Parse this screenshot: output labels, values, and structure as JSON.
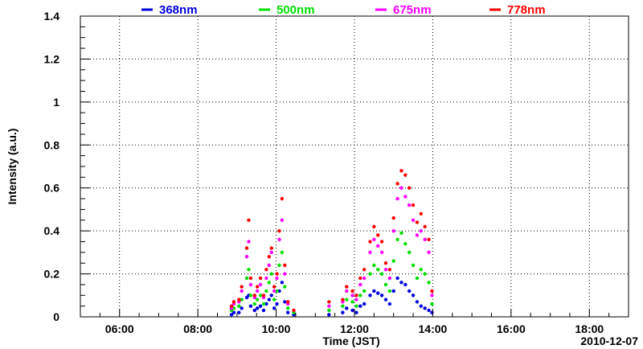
{
  "chart_data": {
    "type": "scatter",
    "title": "",
    "xlabel": "Time (JST)",
    "ylabel": "Intensity (a.u.)",
    "date_label": "2010-12-07",
    "x_unit": "hour of day (JST)",
    "xlim": [
      5.0,
      19.0
    ],
    "ylim": [
      0,
      1.4
    ],
    "x_ticks": [
      6,
      8,
      10,
      12,
      14,
      16,
      18
    ],
    "x_tick_labels": [
      "06:00",
      "08:00",
      "10:00",
      "12:00",
      "14:00",
      "16:00",
      "18:00"
    ],
    "y_ticks": [
      0,
      0.2,
      0.4,
      0.6,
      0.8,
      1,
      1.2,
      1.4
    ],
    "y_tick_labels": [
      "0",
      "0.2",
      "0.4",
      "0.6",
      "0.8",
      "1",
      "1.2",
      "1.4"
    ],
    "grid": true,
    "legend_position": "top",
    "series": [
      {
        "name": "368nm",
        "color": "#0000dd",
        "x": [
          8.86,
          8.92,
          9.05,
          9.12,
          9.25,
          9.3,
          9.35,
          9.45,
          9.52,
          9.6,
          9.68,
          9.75,
          9.82,
          9.88,
          9.95,
          10.02,
          10.08,
          10.15,
          10.22,
          10.3,
          10.45,
          11.35,
          11.7,
          11.8,
          11.95,
          12.05,
          12.15,
          12.25,
          12.4,
          12.5,
          12.6,
          12.7,
          12.8,
          12.9,
          13.0,
          13.1,
          13.2,
          13.3,
          13.4,
          13.5,
          13.6,
          13.7,
          13.8,
          13.9,
          13.98
        ],
        "y": [
          0.01,
          0.02,
          0.02,
          0.04,
          0.09,
          0.1,
          0.05,
          0.03,
          0.04,
          0.05,
          0.03,
          0.06,
          0.08,
          0.1,
          0.04,
          0.06,
          0.12,
          0.16,
          0.07,
          0.02,
          0.01,
          0.01,
          0.02,
          0.04,
          0.03,
          0.02,
          0.05,
          0.06,
          0.1,
          0.12,
          0.11,
          0.1,
          0.08,
          0.06,
          0.12,
          0.18,
          0.16,
          0.15,
          0.12,
          0.1,
          0.07,
          0.05,
          0.04,
          0.03,
          0.02
        ]
      },
      {
        "name": "500nm",
        "color": "#00e000",
        "x": [
          8.86,
          8.92,
          9.05,
          9.12,
          9.25,
          9.3,
          9.35,
          9.45,
          9.52,
          9.6,
          9.68,
          9.75,
          9.82,
          9.88,
          9.95,
          10.02,
          10.08,
          10.15,
          10.22,
          10.3,
          10.45,
          11.35,
          11.7,
          11.8,
          11.95,
          12.05,
          12.15,
          12.25,
          12.4,
          12.5,
          12.6,
          12.7,
          12.8,
          12.9,
          13.0,
          13.1,
          13.2,
          13.3,
          13.4,
          13.5,
          13.6,
          13.7,
          13.8,
          13.9,
          13.98
        ],
        "y": [
          0.03,
          0.04,
          0.05,
          0.08,
          0.18,
          0.22,
          0.1,
          0.06,
          0.08,
          0.1,
          0.06,
          0.12,
          0.16,
          0.2,
          0.08,
          0.12,
          0.24,
          0.3,
          0.14,
          0.04,
          0.02,
          0.03,
          0.05,
          0.08,
          0.07,
          0.05,
          0.1,
          0.12,
          0.2,
          0.24,
          0.22,
          0.2,
          0.15,
          0.12,
          0.26,
          0.36,
          0.39,
          0.34,
          0.3,
          0.24,
          0.18,
          0.22,
          0.2,
          0.16,
          0.06
        ]
      },
      {
        "name": "675nm",
        "color": "#ff00ff",
        "x": [
          8.86,
          8.92,
          9.05,
          9.12,
          9.25,
          9.3,
          9.35,
          9.45,
          9.52,
          9.6,
          9.68,
          9.75,
          9.82,
          9.88,
          9.95,
          10.02,
          10.08,
          10.15,
          10.22,
          10.3,
          10.45,
          11.35,
          11.7,
          11.8,
          11.95,
          12.05,
          12.15,
          12.25,
          12.4,
          12.5,
          12.6,
          12.7,
          12.8,
          12.9,
          13.0,
          13.1,
          13.2,
          13.3,
          13.4,
          13.5,
          13.6,
          13.7,
          13.8,
          13.9,
          13.98
        ],
        "y": [
          0.04,
          0.06,
          0.07,
          0.12,
          0.28,
          0.35,
          0.15,
          0.09,
          0.12,
          0.15,
          0.09,
          0.18,
          0.24,
          0.3,
          0.12,
          0.18,
          0.36,
          0.45,
          0.2,
          0.06,
          0.03,
          0.05,
          0.07,
          0.12,
          0.1,
          0.08,
          0.15,
          0.18,
          0.3,
          0.36,
          0.33,
          0.3,
          0.22,
          0.18,
          0.4,
          0.55,
          0.6,
          0.56,
          0.52,
          0.45,
          0.38,
          0.4,
          0.36,
          0.3,
          0.1
        ]
      },
      {
        "name": "778nm",
        "color": "#ff0000",
        "x": [
          8.86,
          8.92,
          9.05,
          9.12,
          9.25,
          9.3,
          9.35,
          9.45,
          9.52,
          9.6,
          9.68,
          9.75,
          9.82,
          9.88,
          9.95,
          10.02,
          10.08,
          10.15,
          10.22,
          10.3,
          10.45,
          11.35,
          11.7,
          11.8,
          11.95,
          12.05,
          12.15,
          12.25,
          12.4,
          12.5,
          12.6,
          12.7,
          12.8,
          12.9,
          13.0,
          13.1,
          13.2,
          13.3,
          13.4,
          13.5,
          13.6,
          13.7,
          13.8,
          13.9,
          13.98
        ],
        "y": [
          0.05,
          0.07,
          0.08,
          0.14,
          0.32,
          0.45,
          0.18,
          0.1,
          0.14,
          0.18,
          0.1,
          0.22,
          0.28,
          0.32,
          0.14,
          0.2,
          0.4,
          0.55,
          0.24,
          0.07,
          0.03,
          0.07,
          0.08,
          0.14,
          0.12,
          0.1,
          0.18,
          0.22,
          0.35,
          0.42,
          0.38,
          0.35,
          0.25,
          0.22,
          0.46,
          0.62,
          0.68,
          0.66,
          0.6,
          0.52,
          0.44,
          0.48,
          0.42,
          0.36,
          0.12
        ]
      }
    ]
  }
}
